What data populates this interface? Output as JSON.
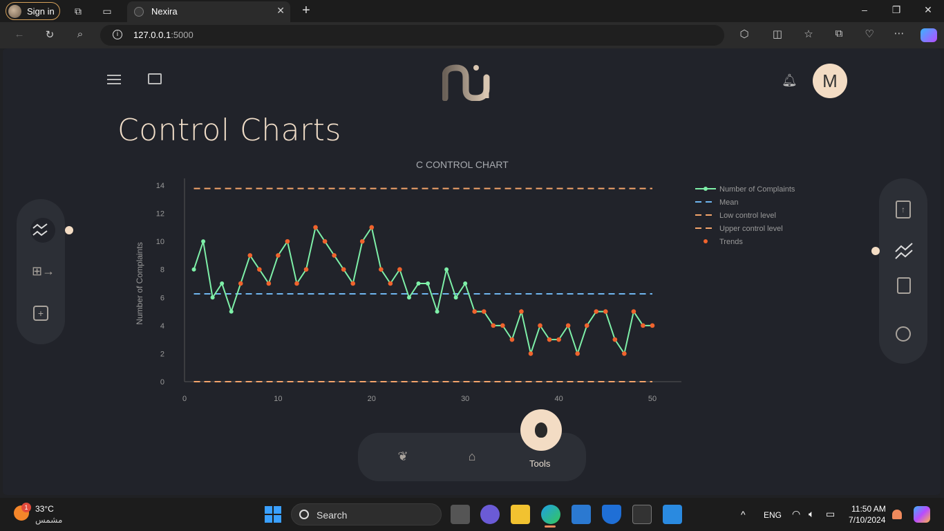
{
  "browser": {
    "signin_label": "Sign in",
    "tab_title": "Nexira",
    "url_host": "127.0.0.1",
    "url_port": ":5000"
  },
  "app": {
    "page_title": "Control Charts",
    "avatar_initial": "M",
    "tools_label": "Tools"
  },
  "chart_data": {
    "type": "line",
    "title": "C CONTROL CHART",
    "xlabel": "",
    "ylabel": "Number of Complaints",
    "xlim": [
      0,
      50
    ],
    "ylim": [
      0,
      14
    ],
    "x_ticks": [
      0,
      10,
      20,
      30,
      40,
      50
    ],
    "y_ticks": [
      0,
      2,
      4,
      6,
      8,
      10,
      12,
      14
    ],
    "legend_position": "right",
    "series": [
      {
        "name": "Number of Complaints",
        "color": "#7ef0a8",
        "x": [
          1,
          2,
          3,
          4,
          5,
          6,
          7,
          8,
          9,
          10,
          11,
          12,
          13,
          14,
          15,
          16,
          17,
          18,
          19,
          20,
          21,
          22,
          23,
          24,
          25,
          26,
          27,
          28,
          29,
          30,
          31,
          32,
          33,
          34,
          35,
          36,
          37,
          38,
          39,
          40,
          41,
          42,
          43,
          44,
          45,
          46,
          47,
          48,
          49,
          50
        ],
        "y": [
          8,
          10,
          6,
          7,
          5,
          7,
          9,
          8,
          7,
          9,
          10,
          7,
          8,
          11,
          10,
          9,
          8,
          7,
          10,
          11,
          8,
          7,
          8,
          6,
          7,
          7,
          5,
          8,
          6,
          7,
          5,
          5,
          4,
          4,
          3,
          5,
          2,
          4,
          3,
          3,
          4,
          2,
          4,
          5,
          5,
          3,
          2,
          5,
          4,
          4
        ]
      },
      {
        "name": "Mean",
        "color": "#6fb6f0",
        "value": 6.26
      },
      {
        "name": "Low control level",
        "color": "#f5a56b",
        "value": 0
      },
      {
        "name": "Upper control level",
        "color": "#f5a56b",
        "value": 13.77
      },
      {
        "name": "Trends",
        "color": "#f0632d",
        "x": [
          6,
          7,
          8,
          9,
          10,
          11,
          12,
          13,
          14,
          15,
          16,
          17,
          18,
          19,
          20,
          21,
          22,
          23,
          31,
          32,
          33,
          34,
          35,
          36,
          37,
          38,
          39,
          40,
          41,
          42,
          43,
          44,
          45,
          46,
          47,
          48,
          49,
          50
        ],
        "y": [
          7,
          9,
          8,
          7,
          9,
          10,
          7,
          8,
          11,
          10,
          9,
          8,
          7,
          10,
          11,
          8,
          7,
          8,
          5,
          5,
          4,
          4,
          3,
          5,
          2,
          4,
          3,
          3,
          4,
          2,
          4,
          5,
          5,
          3,
          2,
          5,
          4,
          4
        ]
      }
    ]
  },
  "taskbar": {
    "weather_temp": "33°C",
    "weather_desc": "مشمس",
    "weather_badge": "1",
    "search_label": "Search",
    "lang": "ENG",
    "time": "11:50 AM",
    "date": "7/10/2024"
  }
}
